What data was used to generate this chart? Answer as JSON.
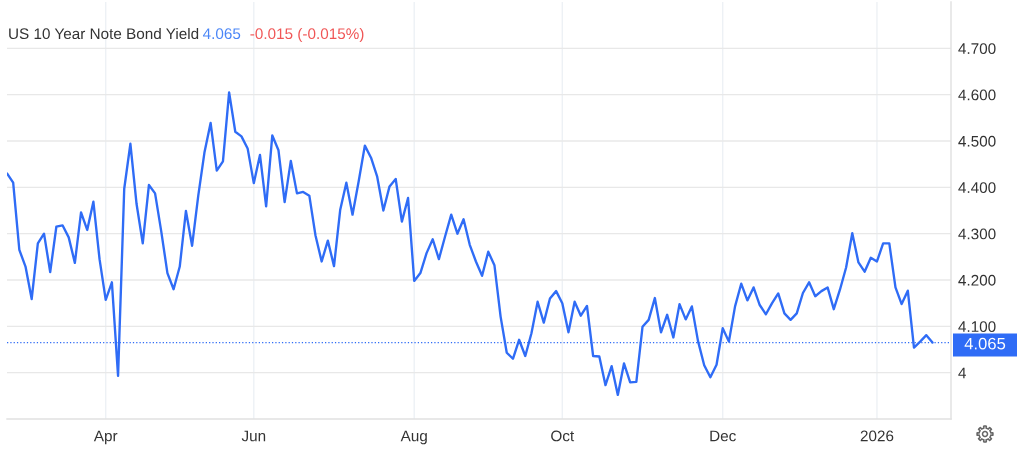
{
  "chart_data": {
    "type": "line",
    "title": "US 10 Year Note Bond Yield",
    "annotations": [
      "4.065",
      "-0.015 (-0.015%)"
    ],
    "categories": [
      null,
      null,
      null,
      null,
      null,
      null,
      null,
      null,
      null,
      null,
      null,
      null,
      null,
      null,
      null,
      null,
      "Apr",
      null,
      null,
      null,
      null,
      null,
      null,
      null,
      null,
      null,
      null,
      null,
      null,
      null,
      null,
      null,
      null,
      null,
      null,
      null,
      null,
      null,
      null,
      null,
      "Jun",
      null,
      null,
      null,
      null,
      null,
      null,
      null,
      null,
      null,
      null,
      null,
      null,
      null,
      null,
      null,
      null,
      null,
      null,
      null,
      null,
      null,
      null,
      null,
      null,
      null,
      "Aug",
      null,
      null,
      null,
      null,
      null,
      null,
      null,
      null,
      null,
      null,
      null,
      null,
      null,
      null,
      null,
      null,
      null,
      null,
      null,
      null,
      null,
      null,
      null,
      "Oct",
      null,
      null,
      null,
      null,
      null,
      null,
      null,
      null,
      null,
      null,
      null,
      null,
      null,
      null,
      null,
      null,
      null,
      null,
      null,
      null,
      null,
      null,
      null,
      null,
      null,
      "Dec",
      null,
      null,
      null,
      null,
      null,
      null,
      null,
      null,
      null,
      null,
      null,
      null,
      null,
      null,
      null,
      null,
      null,
      null,
      null,
      null,
      null,
      null,
      null,
      null,
      "2026",
      null,
      null,
      null,
      null,
      null,
      null,
      null,
      null,
      null
    ],
    "series": [
      {
        "color": "#2f6cf6",
        "values": [
          4.43,
          4.41,
          4.265,
          4.229,
          4.159,
          4.279,
          4.3,
          4.217,
          4.315,
          4.318,
          4.292,
          4.237,
          4.346,
          4.308,
          4.369,
          4.245,
          4.157,
          4.195,
          3.993,
          4.397,
          4.494,
          4.364,
          4.279,
          4.405,
          4.387,
          4.305,
          4.215,
          4.18,
          4.229,
          4.349,
          4.274,
          4.382,
          4.475,
          4.539,
          4.436,
          4.456,
          4.605,
          4.52,
          4.51,
          4.484,
          4.409,
          4.47,
          4.359,
          4.512,
          4.48,
          4.368,
          4.457,
          4.387,
          4.39,
          4.382,
          4.296,
          4.24,
          4.285,
          4.23,
          4.351,
          4.41,
          4.341,
          4.413,
          4.49,
          4.464,
          4.423,
          4.35,
          4.402,
          4.418,
          4.326,
          4.377,
          4.198,
          4.215,
          4.258,
          4.288,
          4.245,
          4.294,
          4.341,
          4.3,
          4.331,
          4.276,
          4.24,
          4.209,
          4.261,
          4.232,
          4.121,
          4.043,
          4.03,
          4.071,
          4.036,
          4.085,
          4.153,
          4.108,
          4.16,
          4.176,
          4.15,
          4.087,
          4.153,
          4.123,
          4.144,
          4.036,
          4.035,
          3.973,
          4.014,
          3.952,
          4.02,
          3.979,
          3.98,
          4.099,
          4.114,
          4.161,
          4.087,
          4.125,
          4.076,
          4.148,
          4.115,
          4.143,
          4.068,
          4.016,
          3.99,
          4.017,
          4.096,
          4.067,
          4.143,
          4.192,
          4.156,
          4.184,
          4.146,
          4.126,
          4.15,
          4.171,
          4.128,
          4.114,
          4.128,
          4.172,
          4.195,
          4.165,
          4.176,
          4.184,
          4.137,
          4.179,
          4.227,
          4.301,
          4.238,
          4.218,
          4.248,
          4.24,
          4.279,
          4.279,
          4.184,
          4.148,
          4.177,
          4.054,
          4.067,
          4.081,
          4.065
        ]
      }
    ],
    "ylim": [
      3.9,
      4.8
    ],
    "yticks": [
      4,
      {
        "value": 4.1,
        "label": "4.100"
      },
      {
        "value": 4.2,
        "label": "4.200"
      },
      {
        "value": 4.3,
        "label": "4.300"
      },
      {
        "value": 4.4,
        "label": "4.400"
      },
      {
        "value": 4.5,
        "label": "4.500"
      },
      {
        "value": 4.6,
        "label": "4.600"
      },
      {
        "value": 4.7,
        "label": "4.700"
      }
    ],
    "grid": true,
    "ref_lines": [
      {
        "axis": "y",
        "value": 4.065,
        "label": "4.065",
        "color": "#2f6cf6",
        "line_style": "dotted"
      }
    ]
  }
}
